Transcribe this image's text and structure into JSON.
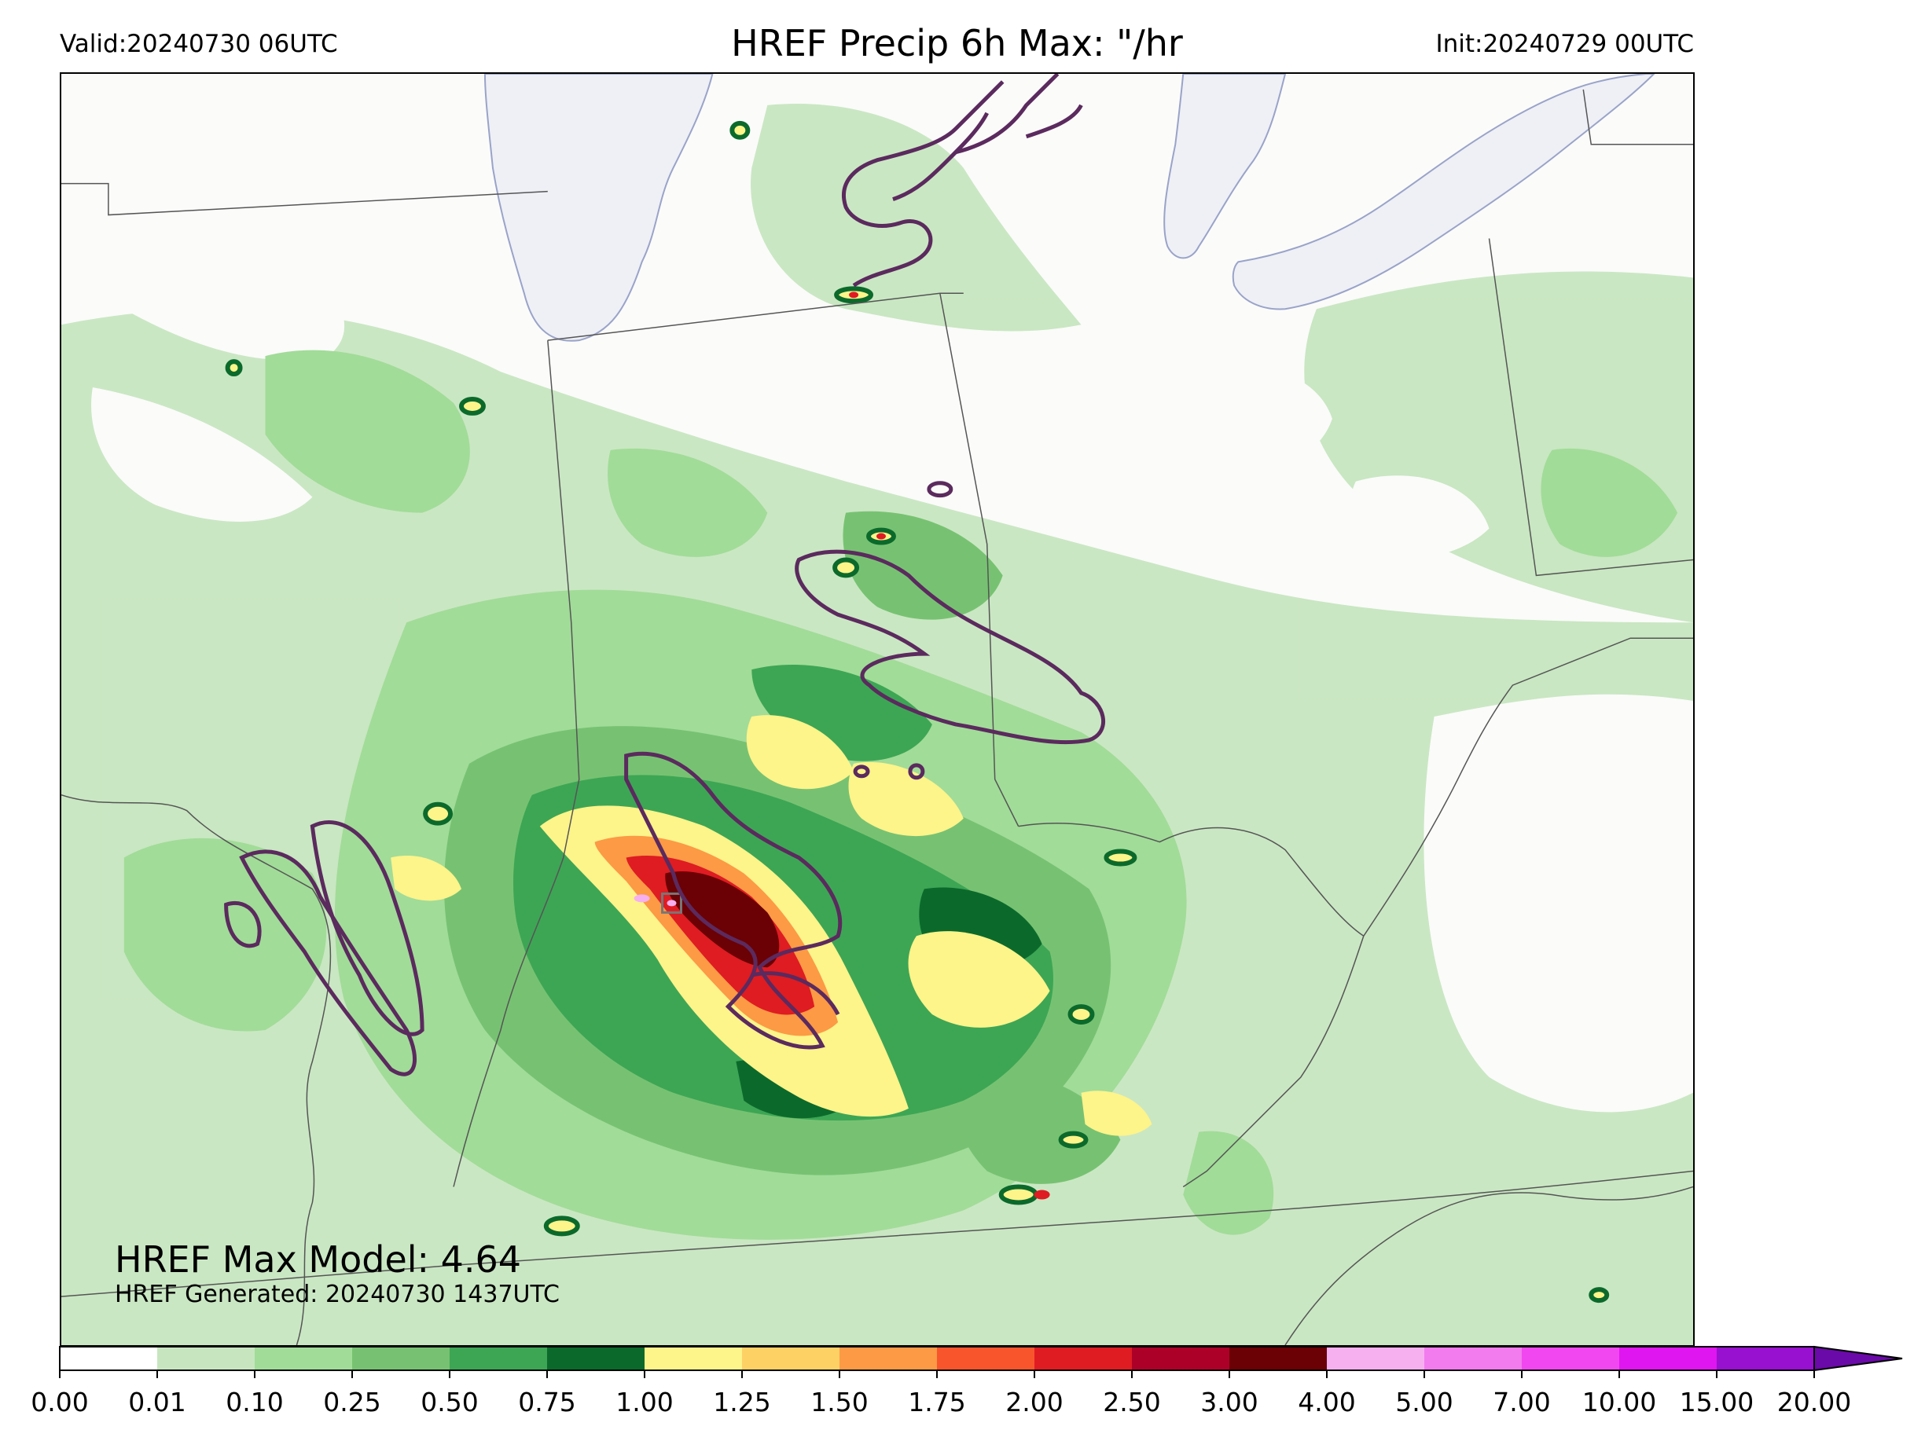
{
  "header": {
    "valid": "Valid:20240730 06UTC",
    "title": "HREF Precip 6h Max: \"/hr",
    "init": "Init:20240729 00UTC"
  },
  "annotations": {
    "max_model": "HREF Max Model: 4.64",
    "generated": "HREF Generated: 20240730 1437UTC"
  },
  "colorbar": {
    "ticks": [
      "0.00",
      "0.01",
      "0.10",
      "0.25",
      "0.50",
      "0.75",
      "1.00",
      "1.25",
      "1.50",
      "1.75",
      "2.00",
      "2.50",
      "3.00",
      "4.00",
      "5.00",
      "7.00",
      "10.00",
      "15.00",
      "20.00"
    ],
    "colors": [
      "#ffffff",
      "#c7e6c0",
      "#a1dc98",
      "#77c272",
      "#3da655",
      "#0b6a2b",
      "#fdf48a",
      "#fed165",
      "#fc9a45",
      "#f8552d",
      "#de1c22",
      "#ad0028",
      "#6b0005",
      "#f6b0f0",
      "#f27bee",
      "#f147f0",
      "#e016f0",
      "#9810d0"
    ],
    "extend_color": "#6a0aa8"
  },
  "map_colors": {
    "lake": "#eef0f6",
    "lake_edge": "#9aa3c8",
    "border": "#555555",
    "contour": "#5b2a5e",
    "land": "#fbfbfa"
  }
}
